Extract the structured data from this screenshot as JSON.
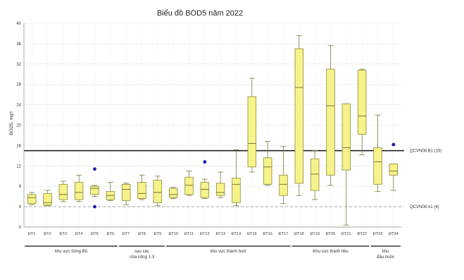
{
  "chart_data": {
    "type": "boxplot",
    "title": "Biểu đồ BOD5 năm 2022",
    "ylabel": "BOD5, mg/l",
    "xlabel": "",
    "ylim": [
      0,
      40
    ],
    "yticks": [
      0,
      4,
      8,
      12,
      16,
      20,
      24,
      28,
      32,
      36,
      40
    ],
    "grid": true,
    "box_color": "#f7f28a",
    "box_edge_color": "#8a8a3a",
    "outlier_color": "#1a1aa8",
    "categories": [
      "ĐT1",
      "ĐT2",
      "ĐT3",
      "ĐT4",
      "ĐT5",
      "ĐT6",
      "ĐT7",
      "ĐT8",
      "ĐT9",
      "ĐT10",
      "ĐT11",
      "ĐT12",
      "ĐT13",
      "ĐT14",
      "ĐT15",
      "ĐT16",
      "ĐT17",
      "ĐT18",
      "ĐT19",
      "ĐT20",
      "ĐT21",
      "ĐT22",
      "ĐT23",
      "ĐT24"
    ],
    "boxes": [
      {
        "min": 4.4,
        "q1": 4.6,
        "median": 5.8,
        "q3": 6.4,
        "max": 6.8,
        "outliers": []
      },
      {
        "min": 4.2,
        "q1": 4.3,
        "median": 4.8,
        "q3": 6.6,
        "max": 7.2,
        "outliers": []
      },
      {
        "min": 5.0,
        "q1": 5.4,
        "median": 6.4,
        "q3": 8.4,
        "max": 9.0,
        "outliers": []
      },
      {
        "min": 5.0,
        "q1": 5.4,
        "median": 6.8,
        "q3": 8.8,
        "max": 10.2,
        "outliers": []
      },
      {
        "min": 6.0,
        "q1": 6.4,
        "median": 7.6,
        "q3": 8.0,
        "max": 8.2,
        "outliers": [
          11.4,
          4.0
        ]
      },
      {
        "min": 5.2,
        "q1": 5.4,
        "median": 6.2,
        "q3": 7.0,
        "max": 8.8,
        "outliers": []
      },
      {
        "min": 4.4,
        "q1": 5.2,
        "median": 7.4,
        "q3": 8.4,
        "max": 8.6,
        "outliers": []
      },
      {
        "min": 5.4,
        "q1": 5.6,
        "median": 6.6,
        "q3": 8.8,
        "max": 10.2,
        "outliers": []
      },
      {
        "min": 4.2,
        "q1": 4.8,
        "median": 6.8,
        "q3": 9.2,
        "max": 10.0,
        "outliers": []
      },
      {
        "min": 5.6,
        "q1": 5.8,
        "median": 6.4,
        "q3": 7.6,
        "max": 7.8,
        "outliers": []
      },
      {
        "min": 6.2,
        "q1": 6.4,
        "median": 8.2,
        "q3": 9.8,
        "max": 11.0,
        "outliers": []
      },
      {
        "min": 5.6,
        "q1": 5.8,
        "median": 7.4,
        "q3": 8.8,
        "max": 9.4,
        "outliers": [
          12.8
        ]
      },
      {
        "min": 5.8,
        "q1": 6.2,
        "median": 6.8,
        "q3": 8.6,
        "max": 10.8,
        "outliers": []
      },
      {
        "min": 4.2,
        "q1": 4.8,
        "median": 8.4,
        "q3": 9.6,
        "max": 15.2,
        "outliers": []
      },
      {
        "min": 10.8,
        "q1": 11.8,
        "median": 16.4,
        "q3": 25.6,
        "max": 29.2,
        "outliers": []
      },
      {
        "min": 8.2,
        "q1": 8.4,
        "median": 11.8,
        "q3": 13.6,
        "max": 16.8,
        "outliers": []
      },
      {
        "min": 4.6,
        "q1": 6.2,
        "median": 8.4,
        "q3": 10.2,
        "max": 15.8,
        "outliers": []
      },
      {
        "min": 6.2,
        "q1": 8.6,
        "median": 27.4,
        "q3": 35.0,
        "max": 37.6,
        "outliers": []
      },
      {
        "min": 5.4,
        "q1": 7.2,
        "median": 10.4,
        "q3": 13.4,
        "max": 15.0,
        "outliers": []
      },
      {
        "min": 8.2,
        "q1": 10.2,
        "median": 23.8,
        "q3": 31.0,
        "max": 35.6,
        "outliers": []
      },
      {
        "min": 0.4,
        "q1": 11.2,
        "median": 15.6,
        "q3": 24.2,
        "max": 24.2,
        "outliers": []
      },
      {
        "min": 14.2,
        "q1": 18.2,
        "median": 21.8,
        "q3": 30.8,
        "max": 31.0,
        "outliers": []
      },
      {
        "min": 7.0,
        "q1": 8.4,
        "median": 12.8,
        "q3": 15.6,
        "max": 22.0,
        "outliers": []
      },
      {
        "min": 7.2,
        "q1": 10.2,
        "median": 11.0,
        "q3": 12.4,
        "max": 12.4,
        "outliers": [
          16.2
        ]
      }
    ],
    "reference_lines": [
      {
        "label": "QCVN08 B1 (15)",
        "value": 15,
        "style": "solid",
        "color": "#111111"
      },
      {
        "label": "QCVN08 A1 (4)",
        "value": 4,
        "style": "dashed",
        "color": "#999999"
      }
    ],
    "groups": [
      {
        "label_lines": [
          "khu vực Sông Bồ"
        ],
        "start": 0,
        "end": 5
      },
      {
        "label_lines": [
          "sau các",
          "cửa cống 1-3"
        ],
        "start": 6,
        "end": 8
      },
      {
        "label_lines": [
          "khu vực thành hướ"
        ],
        "start": 9,
        "end": 16
      },
      {
        "label_lines": [
          "Khu vực thành tiều"
        ],
        "start": 17,
        "end": 21
      },
      {
        "label_lines": [
          "khu",
          "đầu nuồn"
        ],
        "start": 22,
        "end": 23
      }
    ]
  }
}
